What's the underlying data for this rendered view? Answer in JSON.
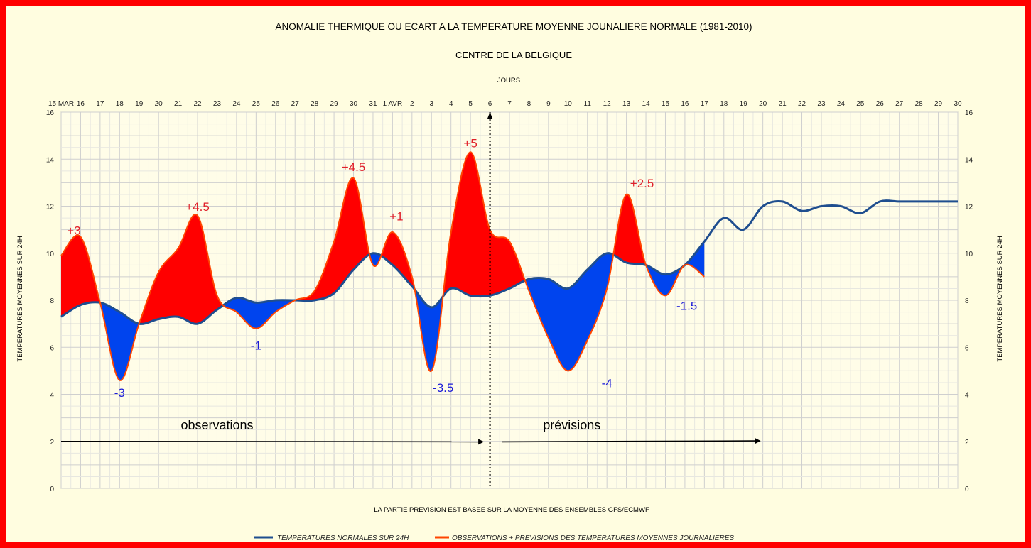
{
  "chart_data": {
    "type": "area",
    "title": "ANOMALIE THERMIQUE OU ECART A LA TEMPERATURE MOYENNE JOUNALIERE NORMALE (1981-2010)",
    "subtitle": "CENTRE DE LA BELGIQUE",
    "xlabel": "JOURS",
    "ylabel_left": "TEMPERATURES MOYENNES SUR 24H",
    "ylabel_right": "TEMPERATURES MOYENNES SUR 24H",
    "footnote": "LA PARTIE PREVISION EST BASEE SUR LA MOYENNE DES ENSEMBLES GFS/ECMWF",
    "ylim": [
      0,
      16
    ],
    "yticks": [
      0,
      2,
      4,
      6,
      8,
      10,
      12,
      14,
      16
    ],
    "xlim": [
      0,
      46
    ],
    "x_tick_labels": [
      "15 MAR",
      "16",
      "17",
      "18",
      "19",
      "20",
      "21",
      "22",
      "23",
      "24",
      "25",
      "26",
      "27",
      "28",
      "29",
      "30",
      "31",
      "1 AVR",
      "2",
      "3",
      "4",
      "5",
      "6",
      "7",
      "8",
      "9",
      "10",
      "11",
      "12",
      "13",
      "14",
      "15",
      "16",
      "17",
      "18",
      "19",
      "20",
      "21",
      "22",
      "23",
      "24",
      "25",
      "26",
      "27",
      "28",
      "29",
      "30"
    ],
    "series": [
      {
        "name": "TEMPERATURES NORMALES SUR 24H",
        "color": "#1f4e8f",
        "x": [
          0,
          1,
          2,
          3,
          4,
          5,
          6,
          7,
          8,
          9,
          10,
          11,
          12,
          13,
          14,
          15,
          16,
          17,
          18,
          19,
          20,
          21,
          22,
          23,
          24,
          25,
          26,
          27,
          28,
          29,
          30,
          31,
          32,
          33,
          34,
          35,
          36,
          37,
          38,
          39,
          40,
          41,
          42,
          43,
          44,
          45,
          46
        ],
        "y": [
          7.3,
          7.8,
          7.9,
          7.5,
          7.0,
          7.2,
          7.3,
          7.0,
          7.6,
          8.1,
          7.9,
          8.0,
          8.0,
          8.0,
          8.3,
          9.3,
          10.0,
          9.5,
          8.6,
          7.7,
          8.5,
          8.2,
          8.2,
          8.5,
          8.9,
          8.9,
          8.5,
          9.3,
          10.0,
          9.6,
          9.5,
          9.1,
          9.5,
          10.5,
          11.5,
          11.0,
          12.0,
          12.2,
          11.8,
          12.0,
          12.0,
          11.7,
          12.2,
          12.2,
          12.2,
          12.2,
          12.2
        ]
      },
      {
        "name": "OBSERVATIONS + PREVISIONS DES TEMPERATURES MOYENNES JOURNALIERES",
        "color": "#ff4500",
        "x": [
          0,
          1,
          2,
          3,
          4,
          5,
          6,
          7,
          8,
          9,
          10,
          11,
          12,
          13,
          14,
          15,
          16,
          17,
          18,
          19,
          20,
          21,
          22,
          23,
          24,
          25,
          26,
          27,
          28,
          29,
          30,
          31,
          32,
          33,
          34,
          35,
          36
        ],
        "y": [
          9.9,
          10.7,
          7.9,
          4.6,
          7.0,
          9.2,
          10.2,
          11.6,
          8.2,
          7.5,
          6.8,
          7.5,
          8.0,
          8.4,
          10.5,
          13.2,
          9.5,
          10.9,
          9.0,
          5.0,
          10.9,
          14.3,
          11.0,
          10.5,
          8.4,
          6.4,
          5.0,
          6.3,
          8.5,
          12.5,
          9.5,
          8.2,
          9.5,
          9.0,
          null,
          null,
          null
        ]
      }
    ],
    "annotations": [
      {
        "text": "+3",
        "color": "#e0202a"
      },
      {
        "text": "-3",
        "color": "#1a1ad8"
      },
      {
        "text": "+4.5",
        "color": "#e0202a"
      },
      {
        "text": "-1",
        "color": "#1a1ad8"
      },
      {
        "text": "+4.5",
        "color": "#e0202a"
      },
      {
        "text": "+1",
        "color": "#e0202a"
      },
      {
        "text": "-3.5",
        "color": "#1a1ad8"
      },
      {
        "text": "+5",
        "color": "#e0202a"
      },
      {
        "text": "-4",
        "color": "#1a1ad8"
      },
      {
        "text": "+2.5",
        "color": "#e0202a"
      },
      {
        "text": "-1.5",
        "color": "#1a1ad8"
      }
    ],
    "period_labels": {
      "observations": "observations",
      "forecast": "prévisions"
    },
    "fill_above_color": "#ff0000",
    "fill_below_color": "#0044ee",
    "grid": true,
    "legend_position": "bottom"
  }
}
